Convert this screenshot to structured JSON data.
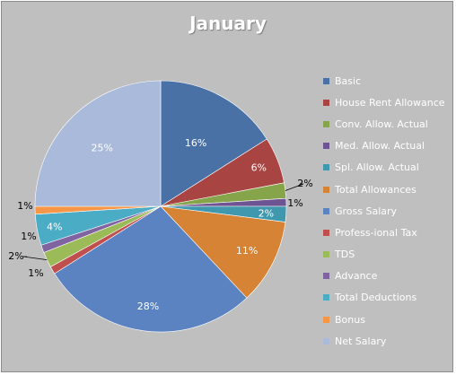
{
  "chart_data": {
    "type": "pie",
    "title": "January",
    "legend_position": "right",
    "slices": [
      {
        "name": "Basic",
        "value": 16,
        "label": "16%",
        "color": "#4a71a6"
      },
      {
        "name": "House Rent Allowance",
        "value": 6,
        "label": "6%",
        "color": "#a84442"
      },
      {
        "name": "Conv. Allow. Actual",
        "value": 2,
        "label": "2%",
        "color": "#86a54a"
      },
      {
        "name": "Med. Allow. Actual",
        "value": 1,
        "label": "1%",
        "color": "#6e5493"
      },
      {
        "name": "Spl. Allow. Actual",
        "value": 2,
        "label": "2%",
        "color": "#3f98ae"
      },
      {
        "name": "Total Allowances",
        "value": 11,
        "label": "11%",
        "color": "#d68335"
      },
      {
        "name": "Gross Salary",
        "value": 28,
        "label": "28%",
        "color": "#5b83c2"
      },
      {
        "name": "Profess-ional Tax",
        "value": 1,
        "label": "1%",
        "color": "#c0504d"
      },
      {
        "name": "TDS",
        "value": 2,
        "label": "2%",
        "color": "#9bbb59"
      },
      {
        "name": "Advance",
        "value": 1,
        "label": "1%",
        "color": "#8064a2"
      },
      {
        "name": "Total Deductions",
        "value": 4,
        "label": "4%",
        "color": "#4bacc6"
      },
      {
        "name": "Bonus",
        "value": 1,
        "label": "1%",
        "color": "#f79646"
      },
      {
        "name": "Net Salary",
        "value": 25,
        "label": "25%",
        "color": "#a9badb"
      }
    ]
  }
}
